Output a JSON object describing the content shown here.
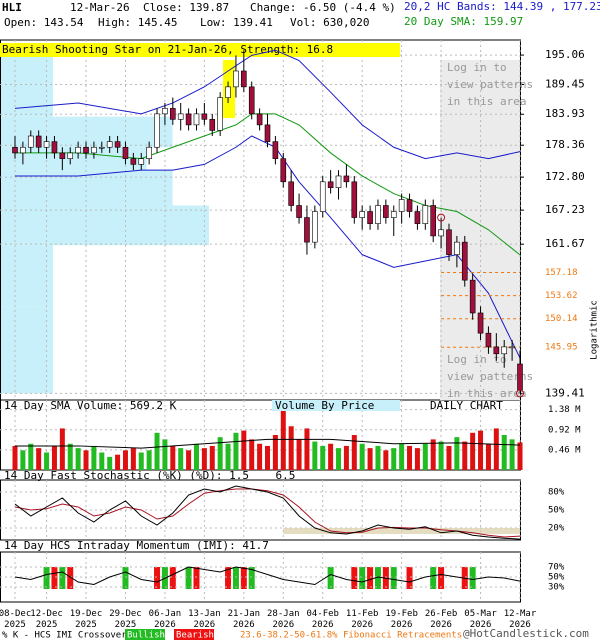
{
  "header": {
    "symbol": "HLI",
    "date": "12-Mar-26",
    "close": "Close: 139.87",
    "change": "Change: -6.50 (-4.4 %)",
    "open": "Open: 143.54",
    "high": "High: 145.45",
    "low": "Low: 139.41",
    "vol": "Vol: 630,020",
    "bands": "20,2 HC Bands: 144.39 , 177.23",
    "sma": "20 Day SMA: 159.97"
  },
  "chart_data": [
    {
      "type": "candlestick",
      "pattern": "Bearish Shooting Star on 21-Jan-26, Strength: 16.8",
      "axis_label": "Logarithmic",
      "login": [
        "Log in to",
        "view patterns",
        "in this area"
      ],
      "log_scale": true,
      "grid": true,
      "ylim": [
        138.5,
        198
      ],
      "yticks": [
        195.06,
        189.45,
        183.93,
        178.36,
        {
          "value": 172.8,
          "label": "172.80"
        },
        167.23,
        161.67,
        139.41
      ],
      "x": [
        "08-Dec\n2025",
        null,
        null,
        null,
        "12-Dec\n2025",
        null,
        null,
        null,
        null,
        "19-Dec\n2025",
        null,
        null,
        null,
        null,
        "29-Dec\n2025",
        null,
        null,
        null,
        null,
        "06-Jan\n2026",
        null,
        null,
        null,
        null,
        "13-Jan\n2026",
        null,
        null,
        null,
        null,
        "21-Jan\n2026",
        null,
        null,
        null,
        null,
        "28-Jan\n2026",
        null,
        null,
        null,
        null,
        "04-Feb\n2026",
        null,
        null,
        null,
        null,
        "11-Feb\n2026",
        null,
        null,
        null,
        null,
        "19-Feb\n2026",
        null,
        null,
        null,
        null,
        "26-Feb\n2026",
        null,
        null,
        null,
        null,
        "05-Mar\n2026",
        null,
        null,
        null,
        null,
        "12-Mar\n2026"
      ],
      "open": [
        178,
        177,
        178,
        180,
        178,
        179,
        177,
        176,
        177,
        178,
        177,
        178,
        178,
        179,
        178,
        176,
        175,
        176,
        178,
        184,
        185,
        183,
        184,
        182,
        184,
        183,
        181,
        187,
        189,
        192,
        189,
        184,
        182,
        179,
        176,
        172,
        168,
        166,
        162,
        167,
        172,
        171,
        173,
        172,
        166,
        167,
        165,
        168,
        166,
        167,
        169,
        167,
        165,
        168,
        163,
        164,
        160,
        162,
        156,
        151,
        148,
        146,
        145,
        146,
        143.54
      ],
      "high": [
        180,
        179,
        181,
        181,
        180,
        180,
        178,
        178,
        179,
        179,
        179,
        179,
        180,
        180,
        179,
        177,
        177,
        179,
        185,
        186,
        187,
        186,
        185,
        185,
        186,
        184,
        188,
        190,
        195,
        196,
        190,
        185,
        184,
        180,
        177,
        174,
        170,
        168,
        168,
        173,
        174,
        174,
        175,
        173,
        168,
        168,
        169,
        169,
        168,
        170,
        170,
        168,
        169,
        169,
        166,
        165,
        163,
        163,
        157,
        152,
        149,
        148,
        147,
        147,
        145.45
      ],
      "low": [
        176,
        175,
        177,
        177,
        176,
        176,
        174,
        175,
        176,
        176,
        176,
        177,
        177,
        177,
        175,
        174,
        174,
        175,
        177,
        182,
        182,
        181,
        181,
        181,
        182,
        180,
        180,
        186,
        187,
        188,
        183,
        181,
        178,
        175,
        171,
        167,
        165,
        160,
        161,
        166,
        170,
        169,
        171,
        165,
        164,
        164,
        164,
        165,
        163,
        165,
        166,
        164,
        164,
        162,
        161,
        159,
        158,
        155,
        150,
        147,
        145,
        144,
        143,
        144,
        139.41
      ],
      "close": [
        177,
        178,
        180,
        178,
        179,
        177,
        176,
        177,
        178,
        177,
        178,
        178,
        179,
        178,
        176,
        175,
        176,
        178,
        184,
        185,
        183,
        184,
        182,
        184,
        183,
        181,
        187,
        189,
        192,
        189,
        184,
        182,
        179,
        176,
        172,
        168,
        166,
        162,
        167,
        172,
        171,
        173,
        172,
        166,
        167,
        165,
        168,
        166,
        167,
        169,
        167,
        165,
        168,
        163,
        164,
        160,
        162,
        156,
        151,
        148,
        146,
        145,
        146,
        146,
        139.87
      ],
      "upper_band": {
        "color": "#1a1acc",
        "x": [
          0,
          8,
          16,
          20,
          24,
          28,
          30,
          33,
          36,
          40,
          44,
          48,
          52,
          56,
          60,
          64
        ],
        "values": [
          185,
          186,
          184,
          186,
          189,
          193,
          195,
          196,
          194,
          188,
          182,
          178,
          176,
          177,
          176,
          177.23
        ]
      },
      "lower_band": {
        "color": "#1a1acc",
        "x": [
          0,
          8,
          16,
          20,
          24,
          28,
          30,
          33,
          36,
          40,
          44,
          48,
          52,
          56,
          60,
          64
        ],
        "values": [
          173,
          173,
          174,
          174,
          175,
          178,
          180,
          178,
          172,
          166,
          160,
          158,
          159,
          160,
          154,
          144.39
        ]
      },
      "sma": {
        "color": "#119911",
        "x": [
          0,
          8,
          16,
          20,
          24,
          28,
          30,
          33,
          36,
          40,
          44,
          48,
          52,
          56,
          60,
          64
        ],
        "values": [
          177,
          177,
          176,
          178,
          180,
          182,
          184,
          184,
          182,
          177,
          173,
          170,
          168,
          167,
          164,
          159.97
        ]
      },
      "fibonacci": {
        "color": "#ee7711",
        "levels": [
          157.18,
          153.62,
          150.14,
          145.95
        ]
      },
      "volume_by_price": {
        "color": "#c8f0fa",
        "xlim": [
          0,
          100
        ],
        "bins": [
          196,
          183.5,
          178,
          174,
          168,
          161.5,
          152,
          139.4
        ],
        "values": [
          10,
          33,
          28,
          33,
          40,
          10,
          10
        ]
      },
      "up_color": "#ffffff",
      "down_color": "#a0103c"
    },
    {
      "type": "volume",
      "title": "14 Day SMA Volume: 569.2 K",
      "label_center": "Volume By Price",
      "label_right": "DAILY CHART",
      "up_color": "#22bb22",
      "down_color": "#dd1111",
      "ylim": [
        0,
        1.6
      ],
      "yticks": [
        {
          "value": 1.38,
          "label": "1.38 M"
        },
        {
          "value": 0.92,
          "label": "0.92 M"
        },
        {
          "value": 0.46,
          "label": "0.46 M"
        }
      ],
      "values": [
        0.55,
        0.45,
        0.6,
        0.5,
        0.4,
        0.55,
        0.95,
        0.6,
        0.5,
        0.45,
        0.55,
        0.4,
        0.3,
        0.35,
        0.45,
        0.5,
        0.4,
        0.45,
        0.85,
        0.7,
        0.55,
        0.5,
        0.45,
        0.6,
        0.5,
        0.55,
        0.75,
        0.6,
        0.85,
        0.9,
        0.7,
        0.6,
        0.55,
        0.8,
        1.55,
        1.0,
        0.7,
        0.95,
        0.65,
        0.55,
        0.6,
        0.5,
        0.55,
        0.8,
        0.6,
        0.5,
        0.55,
        0.45,
        0.5,
        0.6,
        0.55,
        0.5,
        0.6,
        0.7,
        0.65,
        0.55,
        0.75,
        0.65,
        0.85,
        0.9,
        0.6,
        0.95,
        0.8,
        0.7,
        0.63
      ],
      "sma": {
        "color": "#000000",
        "x": [
          0,
          8,
          16,
          24,
          32,
          40,
          48,
          56,
          64
        ],
        "values": [
          0.55,
          0.55,
          0.5,
          0.6,
          0.7,
          0.7,
          0.6,
          0.62,
          0.5692
        ]
      }
    },
    {
      "type": "stochastic",
      "title": "14 Day Fast Stochastic (%K) (%D): 1.5    6.5",
      "ylim": [
        0,
        100
      ],
      "yticks": [
        {
          "value": 80,
          "label": "80%"
        },
        {
          "value": 50,
          "label": "50%"
        },
        {
          "value": 20,
          "label": "20%"
        }
      ],
      "x": [
        0,
        2,
        4,
        6,
        8,
        10,
        12,
        14,
        16,
        18,
        20,
        22,
        24,
        26,
        28,
        30,
        32,
        34,
        36,
        38,
        40,
        42,
        44,
        46,
        48,
        50,
        52,
        54,
        56,
        58,
        60,
        62,
        64
      ],
      "k": {
        "color": "#000000",
        "values": [
          60,
          40,
          55,
          70,
          45,
          30,
          50,
          65,
          40,
          25,
          45,
          75,
          85,
          80,
          90,
          85,
          80,
          70,
          40,
          20,
          12,
          10,
          15,
          25,
          20,
          18,
          22,
          12,
          15,
          8,
          5,
          3,
          1.5
        ]
      },
      "d": {
        "color": "#aa1122",
        "values": [
          55,
          50,
          52,
          60,
          55,
          40,
          45,
          55,
          50,
          35,
          40,
          60,
          78,
          82,
          85,
          85,
          82,
          75,
          55,
          30,
          15,
          12,
          13,
          20,
          21,
          20,
          20,
          17,
          15,
          12,
          8,
          5,
          6.5
        ]
      }
    },
    {
      "type": "momentum",
      "title": "14 Day HCS Intraday Momentum (IMI): 41.7",
      "ylim": [
        0,
        100
      ],
      "yticks": [
        {
          "value": 70,
          "label": "70%"
        },
        {
          "value": 50,
          "label": "50%"
        },
        {
          "value": 30,
          "label": "30%"
        }
      ],
      "x": [
        0,
        2,
        4,
        6,
        8,
        10,
        12,
        14,
        16,
        18,
        20,
        22,
        24,
        26,
        28,
        30,
        32,
        34,
        36,
        38,
        40,
        42,
        44,
        46,
        48,
        50,
        52,
        54,
        56,
        58,
        60,
        62,
        64
      ],
      "values": [
        50,
        45,
        55,
        60,
        40,
        35,
        50,
        60,
        45,
        40,
        55,
        70,
        65,
        60,
        70,
        65,
        55,
        45,
        40,
        35,
        55,
        45,
        40,
        50,
        45,
        40,
        50,
        55,
        50,
        45,
        50,
        48,
        41.7
      ],
      "bullish": {
        "color": "#22bb22",
        "x": [
          4,
          6,
          14,
          19,
          22,
          28,
          30,
          40,
          44,
          46,
          48,
          53,
          58
        ]
      },
      "bearish": {
        "color": "#ee1111",
        "x": [
          5,
          7,
          18,
          20,
          23,
          27,
          29,
          43,
          45,
          47,
          50,
          54,
          57
        ]
      }
    }
  ],
  "footer": {
    "crossover": "% K - HCS IMI Crossover,",
    "bullish": "Bullish",
    "bearish": "Bearish",
    "fibonacci": "23.6-38.2-50-61.8% Fibonacci Retracements",
    "site": "@HotCandlestick.com"
  }
}
